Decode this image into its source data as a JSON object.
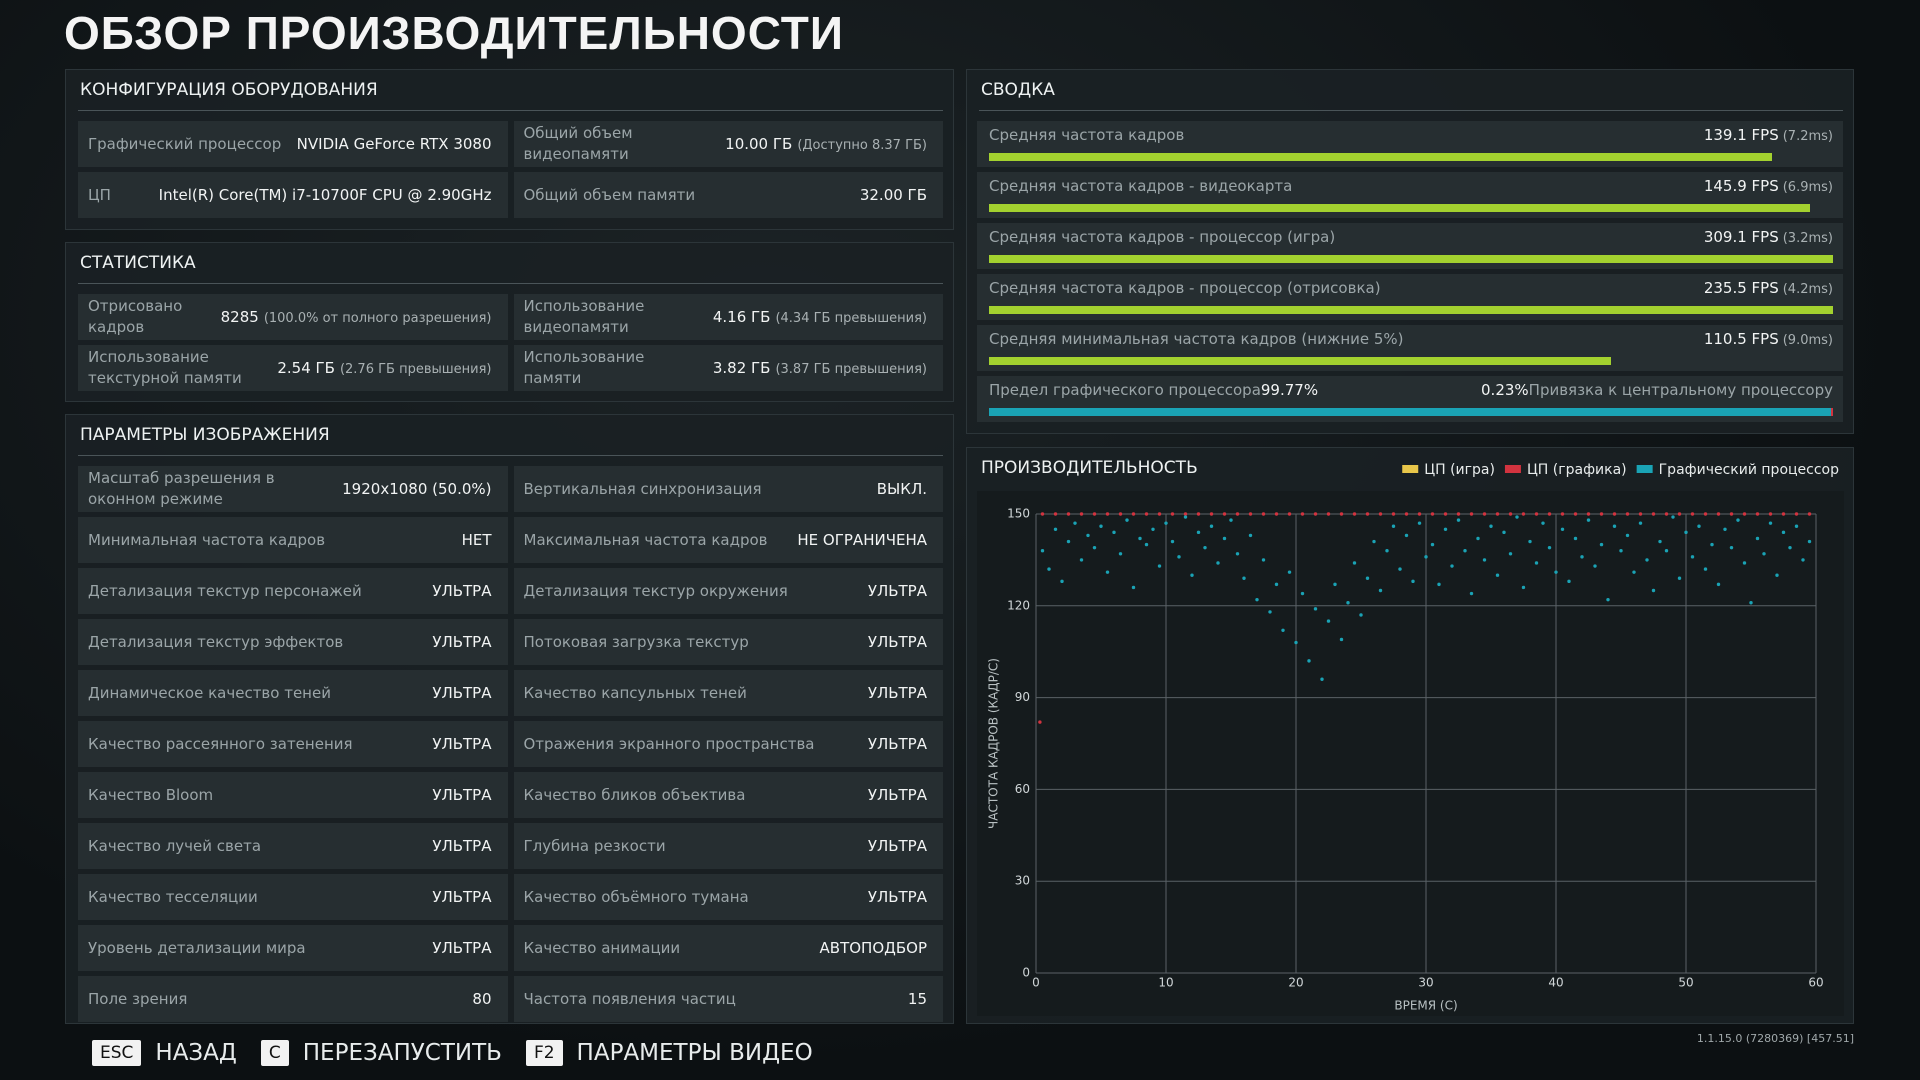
{
  "title": "ОБЗОР ПРОИЗВОДИТЕЛЬНОСТИ",
  "hardware": {
    "title": "КОНФИГУРАЦИЯ ОБОРУДОВАНИЯ",
    "items": [
      {
        "label": "Графический процессор",
        "value": "NVIDIA GeForce RTX 3080"
      },
      {
        "label": "Общий объем видеопамяти",
        "value": "10.00 ГБ",
        "note": "(Доступно 8.37 ГБ)"
      },
      {
        "label": "ЦП",
        "value": "Intel(R) Core(TM) i7-10700F CPU @ 2.90GHz"
      },
      {
        "label": "Общий объем памяти",
        "value": "32.00 ГБ"
      }
    ]
  },
  "statistics": {
    "title": "СТАТИСТИКА",
    "items": [
      {
        "label": "Отрисовано кадров",
        "value": "8285",
        "note": "(100.0% от полного разрешения)"
      },
      {
        "label": "Использование видеопамяти",
        "value": "4.16 ГБ",
        "note": "(4.34 ГБ превышения)"
      },
      {
        "label": "Использование текстурной памяти",
        "value": "2.54 ГБ",
        "note": "(2.76 ГБ превышения)"
      },
      {
        "label": "Использование памяти",
        "value": "3.82 ГБ",
        "note": "(3.87 ГБ превышения)"
      }
    ]
  },
  "image_settings": {
    "title": "ПАРАМЕТРЫ ИЗОБРАЖЕНИЯ",
    "items": [
      {
        "label": "Масштаб разрешения в оконном режиме",
        "value": "1920x1080 (50.0%)"
      },
      {
        "label": "Вертикальная синхронизация",
        "value": "ВЫКЛ."
      },
      {
        "label": "Минимальная частота кадров",
        "value": "НЕТ"
      },
      {
        "label": "Максимальная частота кадров",
        "value": "НЕ ОГРАНИЧЕНА"
      },
      {
        "label": "Детализация текстур персонажей",
        "value": "УЛЬТРА"
      },
      {
        "label": "Детализация текстур окружения",
        "value": "УЛЬТРА"
      },
      {
        "label": "Детализация текстур эффектов",
        "value": "УЛЬТРА"
      },
      {
        "label": "Потоковая загрузка текстур",
        "value": "УЛЬТРА"
      },
      {
        "label": "Динамическое качество теней",
        "value": "УЛЬТРА"
      },
      {
        "label": "Качество капсульных теней",
        "value": "УЛЬТРА"
      },
      {
        "label": "Качество рассеянного затенения",
        "value": "УЛЬТРА"
      },
      {
        "label": "Отражения экранного пространства",
        "value": "УЛЬТРА"
      },
      {
        "label": "Качество Bloom",
        "value": "УЛЬТРА"
      },
      {
        "label": "Качество бликов объектива",
        "value": "УЛЬТРА"
      },
      {
        "label": "Качество лучей света",
        "value": "УЛЬТРА"
      },
      {
        "label": "Глубина резкости",
        "value": "УЛЬТРА"
      },
      {
        "label": "Качество тесселяции",
        "value": "УЛЬТРА"
      },
      {
        "label": "Качество объёмного тумана",
        "value": "УЛЬТРА"
      },
      {
        "label": "Уровень детализации мира",
        "value": "УЛЬТРА"
      },
      {
        "label": "Качество анимации",
        "value": "АВТОПОДБОР"
      },
      {
        "label": "Поле зрения",
        "value": "80"
      },
      {
        "label": "Частота появления частиц",
        "value": "15"
      }
    ]
  },
  "summary": {
    "title": "СВОДКА",
    "items": [
      {
        "label": "Средняя частота кадров",
        "value": 139.1,
        "value_label": "139.1 FPS",
        "frame_time": "(7.2ms)"
      },
      {
        "label": "Средняя частота кадров - видеокарта",
        "value": 145.9,
        "value_label": "145.9 FPS",
        "frame_time": "(6.9ms)"
      },
      {
        "label": "Средняя частота кадров - процессор (игра)",
        "value": 309.1,
        "value_label": "309.1 FPS",
        "frame_time": "(3.2ms)"
      },
      {
        "label": "Средняя частота кадров - процессор (отрисовка)",
        "value": 235.5,
        "value_label": "235.5 FPS",
        "frame_time": "(4.2ms)"
      },
      {
        "label": "Средняя минимальная частота кадров (нижние 5%)",
        "value": 110.5,
        "value_label": "110.5 FPS",
        "frame_time": "(9.0ms)"
      }
    ],
    "gpu_limit": {
      "label": "Предел графического процессора",
      "value": 99.77,
      "value_label": "99.77%",
      "color": "#1aa3b5"
    },
    "cpu_bound": {
      "label": "Привязка к центральному процессору",
      "value": 0.23,
      "value_label": "0.23%",
      "color": "#d2333f"
    }
  },
  "chart_data": {
    "type": "scatter",
    "title": "ПРОИЗВОДИТЕЛЬНОСТЬ",
    "x_label": "ВРЕМЯ (С)",
    "y_label": "ЧАСТОТА КАДРОВ (КАДР/С)",
    "xlim": [
      0,
      60
    ],
    "ylim": [
      0,
      150
    ],
    "xticks": [
      0,
      10,
      20,
      30,
      40,
      50,
      60
    ],
    "yticks": [
      0,
      30,
      60,
      90,
      120,
      150
    ],
    "grid": true,
    "series": [
      {
        "name": "ЦП (игра)",
        "color": "#e8c64a",
        "x": [],
        "values": []
      },
      {
        "name": "ЦП (графика)",
        "color": "#d2333f",
        "x": [
          0.3,
          0.5,
          1.5,
          2.5,
          3.5,
          4.5,
          5.5,
          6.5,
          7.5,
          8.5,
          9.5,
          10.5,
          11.5,
          12.5,
          13.5,
          14.5,
          15.5,
          16.5,
          17.5,
          18.5,
          19.5,
          20.5,
          21.5,
          22.5,
          23.5,
          24.5,
          25.5,
          26.5,
          27.5,
          28.5,
          29.5,
          30.5,
          31.5,
          32.5,
          33.5,
          34.5,
          35.5,
          36.5,
          37.5,
          38.5,
          39.5,
          40.5,
          41.5,
          42.5,
          43.5,
          44.5,
          45.5,
          46.5,
          47.5,
          48.5,
          49.5,
          50.5,
          51.5,
          52.5,
          53.5,
          54.5,
          55.5,
          56.5,
          57.5,
          58.5,
          59.5
        ],
        "values": [
          82,
          150,
          150,
          150,
          150,
          150,
          150,
          150,
          150,
          150,
          150,
          150,
          150,
          150,
          150,
          150,
          150,
          150,
          150,
          150,
          150,
          150,
          150,
          150,
          150,
          150,
          150,
          150,
          150,
          150,
          150,
          150,
          150,
          150,
          150,
          150,
          150,
          150,
          150,
          150,
          150,
          150,
          150,
          150,
          150,
          150,
          150,
          150,
          150,
          150,
          150,
          150,
          150,
          150,
          150,
          150,
          150,
          150,
          150,
          150,
          150
        ]
      },
      {
        "name": "Графический процессор",
        "color": "#1aa3b5",
        "x": [
          0.5,
          1,
          1.5,
          2,
          2.5,
          3,
          3.5,
          4,
          4.5,
          5,
          5.5,
          6,
          6.5,
          7,
          7.5,
          8,
          8.5,
          9,
          9.5,
          10,
          10.5,
          11,
          11.5,
          12,
          12.5,
          13,
          13.5,
          14,
          14.5,
          15,
          15.5,
          16,
          16.5,
          17,
          17.5,
          18,
          18.5,
          19,
          19.5,
          20,
          20.5,
          21,
          21.5,
          22,
          22.5,
          23,
          23.5,
          24,
          24.5,
          25,
          25.5,
          26,
          26.5,
          27,
          27.5,
          28,
          28.5,
          29,
          29.5,
          30,
          30.5,
          31,
          31.5,
          32,
          32.5,
          33,
          33.5,
          34,
          34.5,
          35,
          35.5,
          36,
          36.5,
          37,
          37.5,
          38,
          38.5,
          39,
          39.5,
          40,
          40.5,
          41,
          41.5,
          42,
          42.5,
          43,
          43.5,
          44,
          44.5,
          45,
          45.5,
          46,
          46.5,
          47,
          47.5,
          48,
          48.5,
          49,
          49.5,
          50,
          50.5,
          51,
          51.5,
          52,
          52.5,
          53,
          53.5,
          54,
          54.5,
          55,
          55.5,
          56,
          56.5,
          57,
          57.5,
          58,
          58.5,
          59,
          59.5
        ],
        "values": [
          138,
          132,
          145,
          128,
          141,
          147,
          135,
          143,
          139,
          146,
          131,
          144,
          137,
          148,
          126,
          142,
          140,
          145,
          133,
          147,
          141,
          136,
          149,
          130,
          144,
          139,
          146,
          134,
          142,
          148,
          137,
          129,
          143,
          122,
          135,
          118,
          127,
          112,
          131,
          108,
          124,
          102,
          119,
          96,
          115,
          127,
          109,
          121,
          134,
          117,
          129,
          141,
          125,
          138,
          146,
          132,
          143,
          128,
          147,
          136,
          140,
          127,
          145,
          133,
          148,
          138,
          124,
          142,
          135,
          146,
          130,
          144,
          137,
          149,
          126,
          141,
          134,
          147,
          139,
          131,
          145,
          128,
          142,
          136,
          148,
          133,
          140,
          122,
          146,
          138,
          143,
          131,
          147,
          135,
          125,
          141,
          138,
          149,
          129,
          144,
          136,
          146,
          132,
          140,
          127,
          145,
          139,
          148,
          134,
          121,
          142,
          137,
          147,
          130,
          144,
          139,
          146,
          135,
          141
        ]
      }
    ]
  },
  "footer": {
    "buttons": [
      {
        "key": "ESC",
        "label": "НАЗАД"
      },
      {
        "key": "C",
        "label": "ПЕРЕЗАПУСТИТЬ"
      },
      {
        "key": "F2",
        "label": "ПАРАМЕТРЫ ВИДЕО"
      }
    ],
    "version": "1.1.15.0 (7280369) [457.51]"
  }
}
